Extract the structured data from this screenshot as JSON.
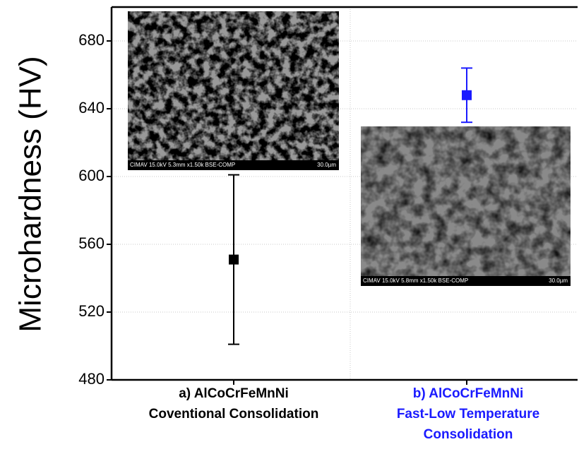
{
  "chart_data": {
    "type": "errorbar",
    "y_label": "Microhardness (HV)",
    "categories": [
      "a) AlCoCrFeMnNi\nCoventional Consolidation",
      "b) AlCoCrFeMnNi\nFast-Low Temperature\nConsolidation"
    ],
    "category_colors": [
      "#000000",
      "#1a1aff"
    ],
    "values": [
      551,
      648
    ],
    "errors": [
      50,
      16
    ],
    "colors": [
      "#000000",
      "#1a1aff"
    ],
    "ylim": [
      480,
      700
    ],
    "yticks": [
      480,
      520,
      560,
      600,
      640,
      680
    ],
    "grid": true,
    "insets": [
      {
        "caption": "CIMAV 15.0kV 5.3mm x1.50k BSE-COMP",
        "scale": "30.0µm"
      },
      {
        "caption": "CIMAV 15.0kV 5.8mm x1.50k BSE-COMP",
        "scale": "30.0µm"
      }
    ]
  }
}
